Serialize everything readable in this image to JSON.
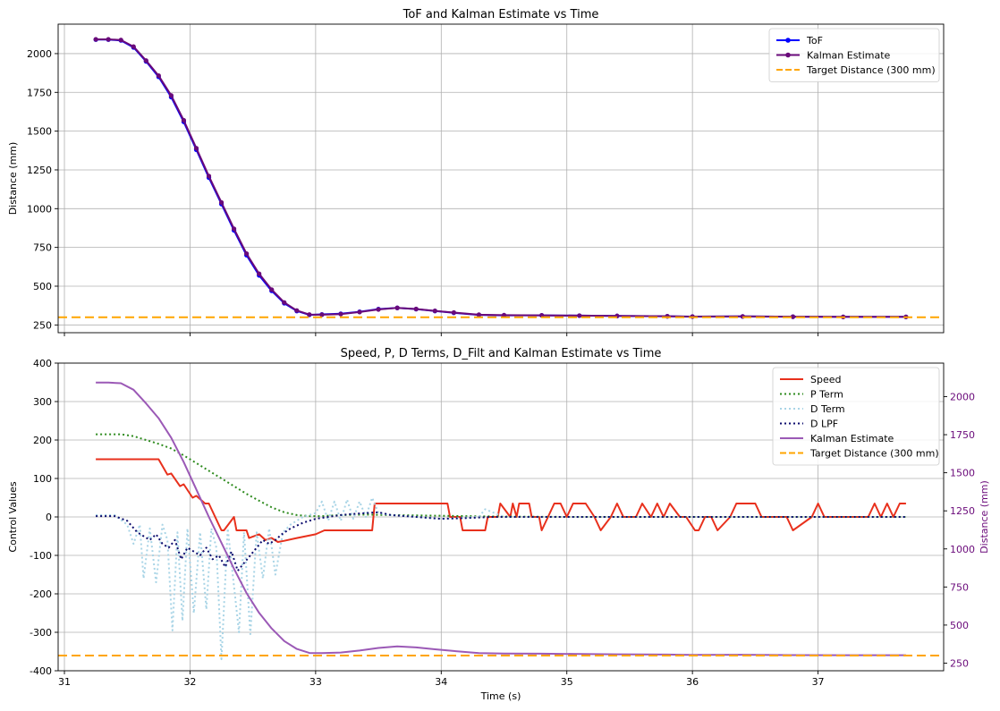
{
  "chart_data": [
    {
      "type": "line",
      "title": "ToF and Kalman Estimate vs Time",
      "xlabel": "",
      "ylabel": "Distance (mm)",
      "xlim": [
        30.95,
        38.0
      ],
      "ylim": [
        200,
        2190
      ],
      "x_ticks": [
        31,
        32,
        33,
        34,
        35,
        36,
        37
      ],
      "y_ticks": [
        250,
        500,
        750,
        1000,
        1250,
        1500,
        1750,
        2000
      ],
      "grid": true,
      "legend_position": "top-right",
      "series": [
        {
          "name": "ToF",
          "color": "#0000ff",
          "style": "solid-marker",
          "x": [
            31.25,
            31.35,
            31.45,
            31.55,
            31.65,
            31.75,
            31.85,
            31.95,
            32.05,
            32.15,
            32.25,
            32.35,
            32.45,
            32.55,
            32.65,
            32.75,
            32.85,
            32.95,
            33.05,
            33.2,
            33.35,
            33.5,
            33.65,
            33.8,
            33.95,
            34.1,
            34.3,
            34.5,
            34.8,
            35.1,
            35.4,
            35.8,
            36.0,
            36.4,
            36.8,
            37.2,
            37.7
          ],
          "values": [
            2090,
            2090,
            2085,
            2040,
            1950,
            1850,
            1720,
            1560,
            1380,
            1200,
            1030,
            860,
            700,
            570,
            470,
            390,
            340,
            315,
            318,
            322,
            335,
            352,
            360,
            352,
            340,
            328,
            315,
            312,
            312,
            310,
            308,
            306,
            304,
            305,
            303,
            302,
            302
          ]
        },
        {
          "name": "Kalman Estimate",
          "color": "#6a0a7a",
          "style": "solid-marker",
          "x": [
            31.25,
            31.35,
            31.45,
            31.55,
            31.65,
            31.75,
            31.85,
            31.95,
            32.05,
            32.15,
            32.25,
            32.35,
            32.45,
            32.55,
            32.65,
            32.75,
            32.85,
            32.95,
            33.05,
            33.2,
            33.35,
            33.5,
            33.65,
            33.8,
            33.95,
            34.1,
            34.3,
            34.5,
            34.8,
            35.1,
            35.4,
            35.8,
            36.0,
            36.4,
            36.8,
            37.2,
            37.7
          ],
          "values": [
            2092,
            2092,
            2088,
            2045,
            1955,
            1858,
            1730,
            1570,
            1390,
            1210,
            1040,
            870,
            710,
            580,
            478,
            395,
            343,
            317,
            316,
            320,
            333,
            350,
            360,
            353,
            341,
            330,
            316,
            313,
            312,
            310,
            308,
            306,
            304,
            305,
            303,
            302,
            302
          ]
        },
        {
          "name": "Target Distance (300 mm)",
          "color": "#ffa500",
          "style": "dashed",
          "x": [
            30.95,
            38.0
          ],
          "values": [
            300,
            300
          ]
        }
      ]
    },
    {
      "type": "line",
      "title": "Speed, P, D Terms, D_Filt and Kalman Estimate vs Time",
      "xlabel": "Time (s)",
      "ylabel": "Control Values",
      "ylabel_right": "Distance (mm)",
      "xlim": [
        30.95,
        38.0
      ],
      "ylim": [
        -400,
        400
      ],
      "ylim_right": [
        200,
        2220
      ],
      "x_ticks": [
        31,
        32,
        33,
        34,
        35,
        36,
        37
      ],
      "y_ticks": [
        -400,
        -300,
        -200,
        -100,
        0,
        100,
        200,
        300,
        400
      ],
      "y_ticks_right": [
        250,
        500,
        750,
        1000,
        1250,
        1500,
        1750,
        2000
      ],
      "grid": true,
      "legend_position": "top-right",
      "series": [
        {
          "name": "Speed",
          "color": "#e8301c",
          "style": "solid",
          "x": [
            31.25,
            31.75,
            31.82,
            31.85,
            31.92,
            31.95,
            32.02,
            32.05,
            32.12,
            32.15,
            32.25,
            32.27,
            32.35,
            32.37,
            32.45,
            32.47,
            32.55,
            32.6,
            32.65,
            32.7,
            32.75,
            32.85,
            33.0,
            33.07,
            33.2,
            33.45,
            33.47,
            34.05,
            34.07,
            34.15,
            34.17,
            34.35,
            34.37,
            34.45,
            34.47,
            34.55,
            34.57,
            34.6,
            34.62,
            34.7,
            34.72,
            34.78,
            34.8,
            34.85,
            34.9,
            34.95,
            35.0,
            35.05,
            35.15,
            35.22,
            35.27,
            35.35,
            35.4,
            35.45,
            35.55,
            35.6,
            35.67,
            35.72,
            35.77,
            35.82,
            35.9,
            35.95,
            36.02,
            36.05,
            36.1,
            36.15,
            36.2,
            36.3,
            36.35,
            36.5,
            36.55,
            36.75,
            36.8,
            36.95,
            37.0,
            37.05,
            37.4,
            37.45,
            37.5,
            37.55,
            37.6,
            37.65,
            37.7
          ],
          "values": [
            150,
            150,
            110,
            113,
            80,
            85,
            50,
            55,
            35,
            35,
            -35,
            -35,
            0,
            -35,
            -35,
            -55,
            -45,
            -60,
            -55,
            -65,
            -62,
            -55,
            -45,
            -35,
            -35,
            -35,
            35,
            35,
            0,
            0,
            -35,
            -35,
            0,
            0,
            35,
            0,
            35,
            0,
            35,
            35,
            0,
            0,
            -35,
            0,
            35,
            35,
            0,
            35,
            35,
            0,
            -35,
            0,
            35,
            0,
            0,
            35,
            0,
            35,
            0,
            35,
            0,
            0,
            -35,
            -35,
            0,
            0,
            -35,
            0,
            35,
            35,
            0,
            0,
            -35,
            0,
            35,
            0,
            0,
            35,
            0,
            35,
            0,
            35,
            35
          ]
        },
        {
          "name": "P Term",
          "color": "#2e8b1e",
          "style": "dotted",
          "x": [
            31.25,
            31.45,
            31.55,
            31.65,
            31.75,
            31.85,
            31.95,
            32.05,
            32.15,
            32.25,
            32.35,
            32.45,
            32.55,
            32.65,
            32.75,
            32.85,
            32.95,
            33.05,
            33.2,
            33.4,
            33.6,
            33.8,
            34.0,
            34.2,
            34.5,
            35.0,
            35.5,
            36.0,
            36.5,
            37.0,
            37.7
          ],
          "values": [
            215,
            215,
            210,
            200,
            190,
            178,
            160,
            140,
            120,
            100,
            80,
            60,
            42,
            25,
            12,
            5,
            2,
            2,
            5,
            6,
            5,
            4,
            3,
            2,
            1,
            0,
            0,
            0,
            0,
            0,
            0
          ]
        },
        {
          "name": "D Term",
          "color": "#a8d4e6",
          "style": "dotted",
          "x": [
            31.25,
            31.4,
            31.5,
            31.55,
            31.6,
            31.63,
            31.68,
            31.73,
            31.78,
            31.82,
            31.86,
            31.9,
            31.94,
            31.98,
            32.03,
            32.08,
            32.13,
            32.17,
            32.21,
            32.25,
            32.3,
            32.35,
            32.39,
            32.43,
            32.48,
            32.53,
            32.58,
            32.63,
            32.68,
            32.74,
            32.8,
            32.9,
            33.0,
            33.05,
            33.1,
            33.15,
            33.2,
            33.25,
            33.3,
            33.35,
            33.4,
            33.45,
            33.5,
            33.6,
            33.8,
            34.0,
            34.3,
            34.35,
            34.5,
            35.0,
            35.5,
            36.0,
            36.5,
            37.0,
            37.5,
            37.7
          ],
          "values": [
            5,
            5,
            -20,
            -70,
            -20,
            -160,
            -30,
            -170,
            -20,
            -60,
            -295,
            -40,
            -270,
            -30,
            -250,
            -40,
            -240,
            -30,
            -80,
            -370,
            -30,
            -180,
            -300,
            -40,
            -305,
            -40,
            -160,
            -30,
            -150,
            -40,
            -20,
            0,
            10,
            40,
            -10,
            40,
            -10,
            45,
            -5,
            40,
            0,
            50,
            10,
            5,
            0,
            -5,
            0,
            20,
            0,
            0,
            0,
            0,
            0,
            0,
            0,
            0
          ]
        },
        {
          "name": "D LPF",
          "color": "#0b0b6e",
          "style": "dotted",
          "x": [
            31.25,
            31.4,
            31.5,
            31.58,
            31.63,
            31.68,
            31.73,
            31.78,
            31.83,
            31.88,
            31.93,
            31.98,
            32.03,
            32.08,
            32.13,
            32.18,
            32.23,
            32.28,
            32.33,
            32.38,
            32.43,
            32.48,
            32.53,
            32.58,
            32.63,
            32.68,
            32.73,
            32.8,
            32.9,
            33.0,
            33.1,
            33.2,
            33.3,
            33.4,
            33.5,
            33.6,
            33.8,
            34.0,
            34.2,
            34.4,
            35.0,
            36.0,
            37.0,
            37.7
          ],
          "values": [
            2,
            2,
            -10,
            -40,
            -50,
            -60,
            -45,
            -70,
            -80,
            -60,
            -110,
            -80,
            -90,
            -100,
            -80,
            -110,
            -100,
            -130,
            -90,
            -140,
            -120,
            -100,
            -80,
            -60,
            -70,
            -60,
            -45,
            -30,
            -15,
            -5,
            0,
            5,
            8,
            10,
            12,
            5,
            0,
            -5,
            -3,
            0,
            0,
            0,
            0,
            0
          ]
        },
        {
          "name": "Kalman Estimate",
          "color": "#9b59b6",
          "style": "solid",
          "axis": "right",
          "x": [
            31.25,
            31.35,
            31.45,
            31.55,
            31.65,
            31.75,
            31.85,
            31.95,
            32.05,
            32.15,
            32.25,
            32.35,
            32.45,
            32.55,
            32.65,
            32.75,
            32.85,
            32.95,
            33.05,
            33.2,
            33.35,
            33.5,
            33.65,
            33.8,
            33.95,
            34.1,
            34.3,
            34.5,
            34.8,
            35.1,
            35.4,
            35.8,
            36.0,
            36.4,
            36.8,
            37.2,
            37.7
          ],
          "values": [
            2092,
            2092,
            2088,
            2045,
            1955,
            1858,
            1730,
            1570,
            1390,
            1210,
            1040,
            870,
            710,
            580,
            478,
            395,
            343,
            317,
            316,
            320,
            333,
            350,
            360,
            353,
            341,
            330,
            316,
            313,
            312,
            310,
            308,
            306,
            304,
            305,
            303,
            302,
            302
          ]
        },
        {
          "name": "Target Distance (300 mm)",
          "color": "#ffa500",
          "style": "dashed",
          "axis": "right",
          "x": [
            30.95,
            38.0
          ],
          "values": [
            300,
            300
          ]
        }
      ]
    }
  ]
}
